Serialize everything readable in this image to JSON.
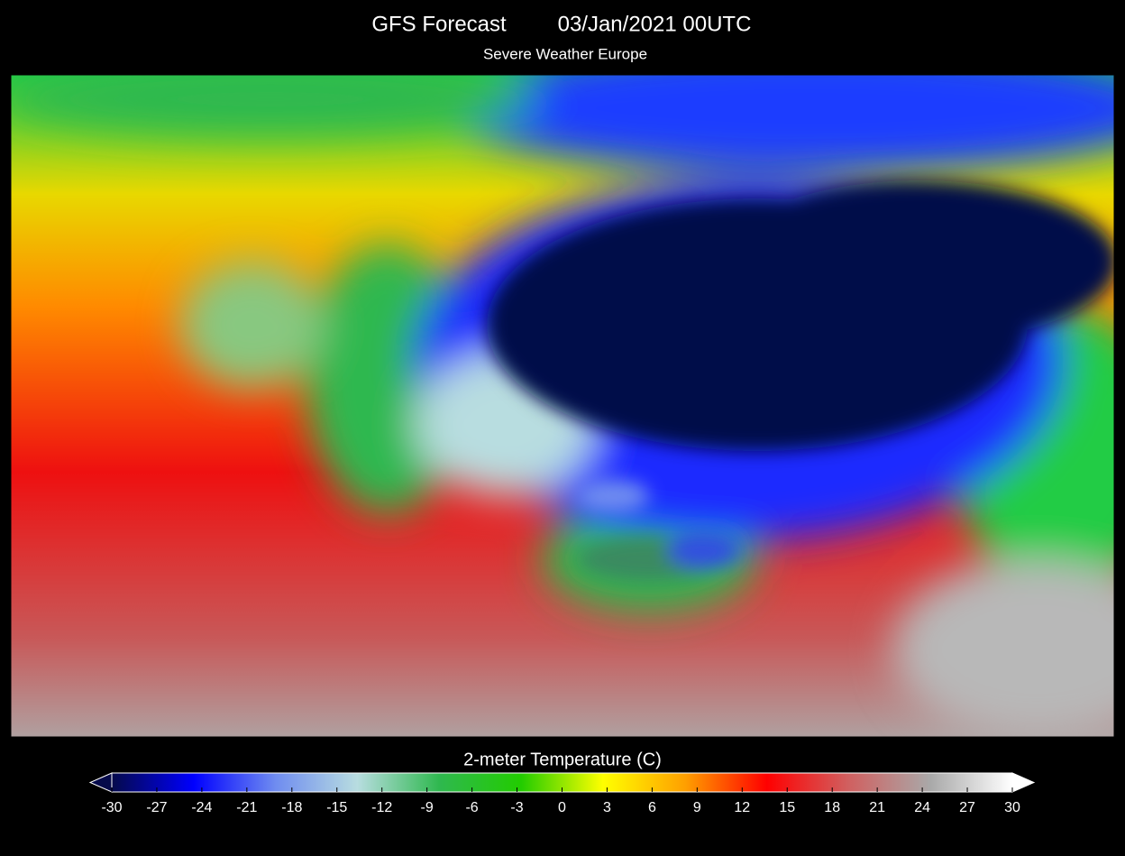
{
  "header": {
    "title": "GFS Forecast",
    "date": "03/Jan/2021 00UTC",
    "subtitle": "Severe Weather Europe"
  },
  "colorbar": {
    "label": "2-meter Temperature (C)",
    "range": [
      -30,
      30
    ],
    "ticks": [
      -30,
      -27,
      -24,
      -21,
      -18,
      -15,
      -12,
      -9,
      -6,
      -3,
      0,
      3,
      6,
      9,
      12,
      15,
      18,
      21,
      24,
      27,
      30
    ],
    "colors": [
      "#050a4a",
      "#0000ff",
      "#6f8cf0",
      "#b8dde0",
      "#2fb84f",
      "#22cc00",
      "#ffff00",
      "#ffa000",
      "#ff0000",
      "#d06060",
      "#a9a9a9",
      "#ffffff"
    ]
  }
}
